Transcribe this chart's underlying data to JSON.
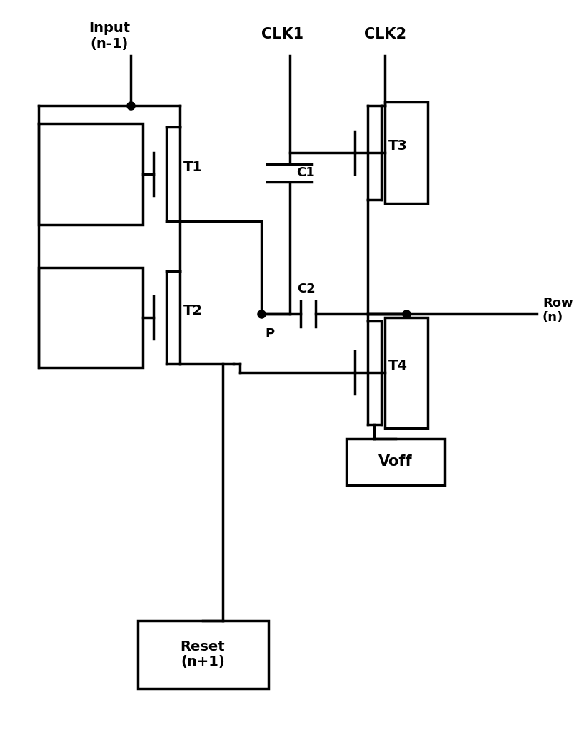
{
  "bg": "#ffffff",
  "lc": "#000000",
  "lw": 2.5,
  "dot_size": 8,
  "labels": {
    "input": "Input\n(n-1)",
    "clk1": "CLK1",
    "clk2": "CLK2",
    "t1": "T1",
    "t2": "T2",
    "t3": "T3",
    "t4": "T4",
    "c1": "C1",
    "c2": "C2",
    "p": "P",
    "row": "Row\n(n)",
    "reset": "Reset\n(n+1)",
    "voff": "Voff"
  }
}
